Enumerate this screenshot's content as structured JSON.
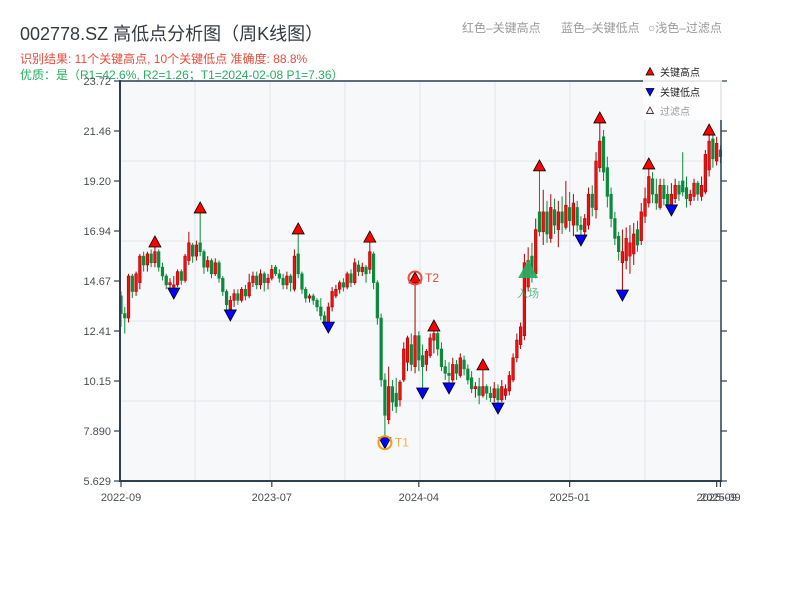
{
  "header": {
    "title": "002778.SZ 高低点分析图（周K线图）",
    "summary": "识别结果: 11个关键高点, 10个关键低点  准确度: 88.8%",
    "quality": "优质：是（R1=42.6%, R2=1.26；T1=2024-02-08 P1=7.36）"
  },
  "color_legend": {
    "high": "红色–关键高点",
    "low": "蓝色–关键低点",
    "filtered": "○浅色–过滤点"
  },
  "colors": {
    "up_candle": "#ee1111",
    "up_candle_edge": "#b00000",
    "down_candle": "#0b8a3a",
    "key_high": "#ff0000",
    "key_low": "#0000ff",
    "t1_ring": "#f39c12",
    "t2_ring": "#e74c3c",
    "entry": "#27ae60",
    "plot_bg": "#f6f8fa",
    "grid": "#e2e5e9",
    "spine": "#2c3e50"
  },
  "chart_data": {
    "type": "candlestick",
    "title": "002778.SZ 高低点分析图（周K线图）",
    "xlabel": "",
    "ylabel": "",
    "ylim": [
      5.629,
      23.72
    ],
    "grid": true,
    "legend_position": "upper right",
    "y_ticks": [
      "23.72",
      "21.46",
      "19.20",
      "16.94",
      "14.67",
      "12.41",
      "10.15",
      "7.890",
      "5.629"
    ],
    "x_ticks": [
      {
        "label": "2022-09",
        "index": 0
      },
      {
        "label": "2023-07",
        "index": 40
      },
      {
        "label": "2024-04",
        "index": 79
      },
      {
        "label": "2025-01",
        "index": 119
      },
      {
        "label": "2025-09",
        "index": 158
      },
      {
        "label": "2025-09",
        "index": 159
      }
    ],
    "candle_fields": [
      "open",
      "high",
      "low",
      "close"
    ],
    "candles": [
      [
        14.0,
        14.2,
        12.6,
        13.2
      ],
      [
        13.2,
        13.5,
        12.3,
        13.0
      ],
      [
        13.0,
        15.0,
        12.8,
        14.9
      ],
      [
        14.9,
        15.0,
        13.9,
        14.2
      ],
      [
        14.2,
        15.1,
        14.0,
        15.0
      ],
      [
        14.6,
        15.9,
        14.3,
        15.8
      ],
      [
        15.8,
        16.0,
        15.1,
        15.4
      ],
      [
        15.4,
        16.0,
        15.1,
        15.9
      ],
      [
        15.9,
        16.1,
        15.3,
        15.5
      ],
      [
        15.5,
        16.44,
        15.3,
        16.0
      ],
      [
        16.0,
        16.1,
        15.1,
        15.3
      ],
      [
        15.3,
        15.5,
        14.7,
        14.9
      ],
      [
        14.9,
        15.0,
        14.3,
        14.5
      ],
      [
        14.5,
        14.8,
        14.2,
        14.6
      ],
      [
        14.4,
        14.9,
        14.13,
        14.5
      ],
      [
        14.5,
        15.2,
        14.4,
        15.1
      ],
      [
        15.1,
        15.2,
        14.5,
        14.7
      ],
      [
        14.7,
        15.9,
        14.6,
        15.8
      ],
      [
        15.6,
        16.9,
        15.4,
        16.4
      ],
      [
        16.3,
        16.4,
        15.5,
        15.8
      ],
      [
        15.8,
        16.5,
        15.6,
        16.3
      ],
      [
        16.4,
        17.98,
        15.8,
        16.0
      ],
      [
        16.0,
        16.1,
        15.0,
        15.3
      ],
      [
        15.3,
        15.8,
        15.1,
        15.6
      ],
      [
        15.6,
        15.7,
        14.8,
        15.0
      ],
      [
        15.0,
        15.7,
        14.9,
        15.5
      ],
      [
        15.5,
        15.6,
        14.6,
        14.8
      ],
      [
        14.8,
        14.9,
        14.0,
        14.2
      ],
      [
        14.2,
        14.3,
        13.3,
        13.6
      ],
      [
        13.4,
        14.0,
        13.14,
        13.8
      ],
      [
        13.8,
        14.3,
        13.5,
        14.1
      ],
      [
        14.1,
        14.3,
        13.6,
        13.8
      ],
      [
        13.8,
        14.4,
        13.7,
        14.3
      ],
      [
        14.3,
        14.5,
        13.8,
        14.0
      ],
      [
        14.0,
        15.0,
        13.9,
        14.6
      ],
      [
        14.6,
        15.1,
        14.4,
        14.9
      ],
      [
        14.9,
        15.1,
        14.3,
        14.5
      ],
      [
        14.5,
        15.2,
        14.3,
        15.0
      ],
      [
        15.0,
        15.1,
        14.2,
        14.6
      ],
      [
        14.6,
        15.0,
        14.3,
        14.8
      ],
      [
        14.8,
        15.4,
        14.7,
        15.2
      ],
      [
        15.3,
        15.4,
        14.9,
        15.0
      ],
      [
        15.0,
        15.2,
        14.6,
        14.8
      ],
      [
        14.8,
        15.0,
        14.3,
        14.5
      ],
      [
        14.5,
        15.1,
        14.3,
        14.9
      ],
      [
        14.9,
        15.0,
        14.2,
        14.6
      ],
      [
        14.3,
        16.1,
        14.2,
        15.8
      ],
      [
        15.9,
        17.03,
        14.8,
        15.0
      ],
      [
        15.0,
        15.1,
        14.1,
        14.3
      ],
      [
        14.3,
        14.4,
        13.7,
        13.9
      ],
      [
        13.9,
        14.1,
        13.7,
        14.0
      ],
      [
        14.0,
        14.1,
        13.6,
        13.8
      ],
      [
        13.8,
        13.9,
        13.3,
        13.5
      ],
      [
        13.5,
        13.9,
        12.9,
        13.1
      ],
      [
        13.1,
        13.3,
        12.7,
        12.8
      ],
      [
        12.8,
        13.7,
        12.59,
        13.5
      ],
      [
        13.5,
        14.4,
        13.3,
        14.2
      ],
      [
        14.0,
        14.5,
        13.9,
        14.3
      ],
      [
        14.3,
        14.7,
        14.1,
        14.6
      ],
      [
        14.6,
        14.8,
        14.2,
        14.4
      ],
      [
        14.4,
        15.1,
        14.3,
        15.0
      ],
      [
        15.0,
        15.2,
        14.4,
        14.6
      ],
      [
        14.6,
        15.7,
        14.5,
        15.5
      ],
      [
        15.4,
        15.6,
        14.9,
        15.1
      ],
      [
        15.1,
        15.5,
        14.9,
        15.3
      ],
      [
        15.3,
        15.4,
        14.6,
        15.0
      ],
      [
        15.2,
        16.66,
        15.0,
        16.0
      ],
      [
        15.9,
        16.0,
        14.3,
        14.6
      ],
      [
        14.6,
        14.7,
        12.7,
        13.0
      ],
      [
        13.0,
        13.2,
        9.9,
        10.2
      ],
      [
        10.2,
        10.5,
        7.36,
        8.6
      ],
      [
        8.4,
        10.8,
        8.2,
        9.9
      ],
      [
        9.9,
        10.2,
        8.8,
        9.2
      ],
      [
        9.6,
        10.3,
        8.7,
        9.0
      ],
      [
        9.3,
        10.2,
        9.0,
        10.1
      ],
      [
        10.2,
        11.9,
        10.1,
        11.6
      ],
      [
        11.0,
        12.2,
        10.6,
        12.1
      ],
      [
        11.8,
        12.3,
        10.6,
        10.9
      ],
      [
        10.8,
        14.81,
        10.5,
        12.2
      ],
      [
        12.2,
        12.4,
        10.6,
        11.1
      ],
      [
        11.3,
        11.8,
        9.61,
        10.8
      ],
      [
        10.9,
        11.6,
        10.6,
        11.5
      ],
      [
        11.3,
        12.3,
        11.2,
        12.1
      ],
      [
        12.0,
        12.64,
        11.4,
        12.3
      ],
      [
        12.3,
        12.4,
        11.3,
        11.6
      ],
      [
        11.6,
        11.9,
        10.6,
        10.8
      ],
      [
        10.8,
        11.1,
        10.2,
        10.5
      ],
      [
        10.5,
        11.0,
        9.84,
        10.4
      ],
      [
        10.2,
        11.2,
        10.1,
        10.9
      ],
      [
        10.9,
        11.1,
        10.2,
        10.5
      ],
      [
        10.4,
        11.4,
        10.3,
        11.2
      ],
      [
        11.1,
        11.3,
        10.4,
        10.7
      ],
      [
        10.7,
        10.9,
        10.0,
        10.2
      ],
      [
        10.3,
        10.6,
        9.6,
        9.8
      ],
      [
        9.8,
        10.1,
        9.4,
        9.9
      ],
      [
        9.9,
        10.3,
        9.1,
        9.5
      ],
      [
        9.5,
        10.88,
        9.4,
        9.9
      ],
      [
        9.9,
        10.0,
        9.3,
        9.6
      ],
      [
        9.6,
        9.9,
        9.2,
        9.4
      ],
      [
        9.4,
        10.1,
        9.2,
        9.8
      ],
      [
        9.8,
        10.0,
        8.93,
        9.3
      ],
      [
        9.3,
        10.2,
        9.2,
        9.9
      ],
      [
        9.5,
        10.0,
        9.3,
        9.8
      ],
      [
        9.7,
        10.6,
        9.5,
        10.4
      ],
      [
        10.2,
        11.4,
        10.1,
        11.2
      ],
      [
        11.2,
        12.3,
        11.0,
        12.0
      ],
      [
        11.8,
        12.8,
        11.6,
        12.6
      ],
      [
        12.2,
        15.9,
        12.0,
        15.5
      ],
      [
        14.4,
        16.2,
        14.2,
        15.6
      ],
      [
        15.8,
        16.4,
        14.6,
        15.0
      ],
      [
        15.0,
        17.5,
        14.8,
        17.0
      ],
      [
        17.8,
        19.88,
        16.7,
        16.9
      ],
      [
        16.9,
        18.8,
        16.3,
        17.8
      ],
      [
        17.8,
        18.3,
        16.4,
        16.8
      ],
      [
        16.6,
        18.6,
        16.4,
        18.0
      ],
      [
        17.9,
        18.4,
        16.8,
        17.2
      ],
      [
        17.0,
        18.3,
        16.2,
        17.8
      ],
      [
        17.8,
        18.5,
        16.8,
        17.3
      ],
      [
        17.1,
        19.2,
        17.0,
        18.1
      ],
      [
        18.0,
        18.7,
        16.9,
        17.4
      ],
      [
        17.2,
        18.6,
        16.7,
        18.2
      ],
      [
        18.0,
        18.3,
        16.9,
        17.2
      ],
      [
        17.2,
        17.6,
        16.53,
        17.0
      ],
      [
        16.9,
        17.7,
        16.6,
        17.5
      ],
      [
        17.2,
        18.9,
        17.0,
        18.6
      ],
      [
        18.6,
        19.0,
        17.6,
        18.0
      ],
      [
        17.9,
        20.5,
        17.5,
        20.1
      ],
      [
        19.8,
        22.05,
        19.6,
        21.0
      ],
      [
        21.2,
        21.5,
        19.2,
        19.6
      ],
      [
        19.8,
        20.3,
        18.0,
        18.5
      ],
      [
        18.6,
        18.9,
        17.1,
        17.5
      ],
      [
        17.5,
        17.8,
        16.3,
        16.6
      ],
      [
        16.7,
        16.9,
        15.6,
        16.0
      ],
      [
        15.5,
        17.0,
        14.04,
        16.0
      ],
      [
        15.6,
        17.1,
        15.2,
        16.6
      ],
      [
        15.8,
        17.2,
        15.0,
        16.4
      ],
      [
        15.9,
        17.3,
        15.4,
        16.8
      ],
      [
        17.0,
        17.4,
        16.0,
        16.3
      ],
      [
        16.5,
        18.2,
        16.3,
        17.8
      ],
      [
        17.6,
        18.9,
        17.3,
        18.4
      ],
      [
        18.2,
        19.97,
        18.0,
        19.4
      ],
      [
        19.3,
        19.6,
        18.2,
        18.6
      ],
      [
        18.6,
        19.3,
        17.9,
        18.2
      ],
      [
        18.0,
        19.3,
        17.9,
        19.0
      ],
      [
        19.0,
        19.3,
        18.1,
        18.4
      ],
      [
        18.6,
        19.0,
        17.95,
        18.0
      ],
      [
        18.1,
        19.1,
        17.89,
        18.6
      ],
      [
        18.4,
        19.3,
        18.2,
        19.0
      ],
      [
        19.0,
        19.2,
        18.3,
        18.6
      ],
      [
        19.2,
        20.5,
        18.5,
        18.7
      ],
      [
        18.9,
        19.4,
        18.0,
        18.4
      ],
      [
        18.3,
        18.8,
        18.1,
        18.6
      ],
      [
        18.5,
        19.3,
        18.3,
        19.1
      ],
      [
        19.1,
        19.2,
        18.3,
        18.6
      ],
      [
        18.5,
        19.4,
        18.3,
        19.0
      ],
      [
        18.7,
        20.6,
        18.6,
        20.4
      ],
      [
        19.7,
        21.5,
        19.4,
        21.0
      ],
      [
        21.1,
        21.3,
        19.8,
        20.2
      ],
      [
        20.1,
        21.2,
        19.9,
        20.9
      ],
      [
        20.6,
        20.8,
        20.0,
        20.3
      ]
    ],
    "key_highs": [
      {
        "index": 9,
        "price": 16.44
      },
      {
        "index": 21,
        "price": 17.98
      },
      {
        "index": 47,
        "price": 17.03
      },
      {
        "index": 66,
        "price": 16.66
      },
      {
        "index": 78,
        "price": 14.81
      },
      {
        "index": 83,
        "price": 12.64
      },
      {
        "index": 96,
        "price": 10.88
      },
      {
        "index": 111,
        "price": 19.88
      },
      {
        "index": 127,
        "price": 22.05
      },
      {
        "index": 140,
        "price": 19.97
      },
      {
        "index": 156,
        "price": 21.5
      }
    ],
    "key_lows": [
      {
        "index": 14,
        "price": 14.13
      },
      {
        "index": 29,
        "price": 13.14
      },
      {
        "index": 55,
        "price": 12.59
      },
      {
        "index": 70,
        "price": 7.36
      },
      {
        "index": 80,
        "price": 9.61
      },
      {
        "index": 87,
        "price": 9.84
      },
      {
        "index": 100,
        "price": 8.93
      },
      {
        "index": 122,
        "price": 16.53
      },
      {
        "index": 133,
        "price": 14.04
      },
      {
        "index": 146,
        "price": 17.89
      }
    ],
    "annotations": {
      "t1": {
        "label": "T1",
        "index": 70,
        "price": 7.36
      },
      "t2": {
        "label": "T2",
        "index": 78,
        "price": 14.81
      },
      "entry": {
        "label": "入场",
        "index": 108,
        "price": 15.17
      }
    },
    "legend": [
      {
        "label": "关键高点",
        "marker": "red-up-triangle"
      },
      {
        "label": "关键低点",
        "marker": "blue-down-triangle"
      },
      {
        "label": "过滤点",
        "marker": "light-up-triangle"
      }
    ]
  }
}
